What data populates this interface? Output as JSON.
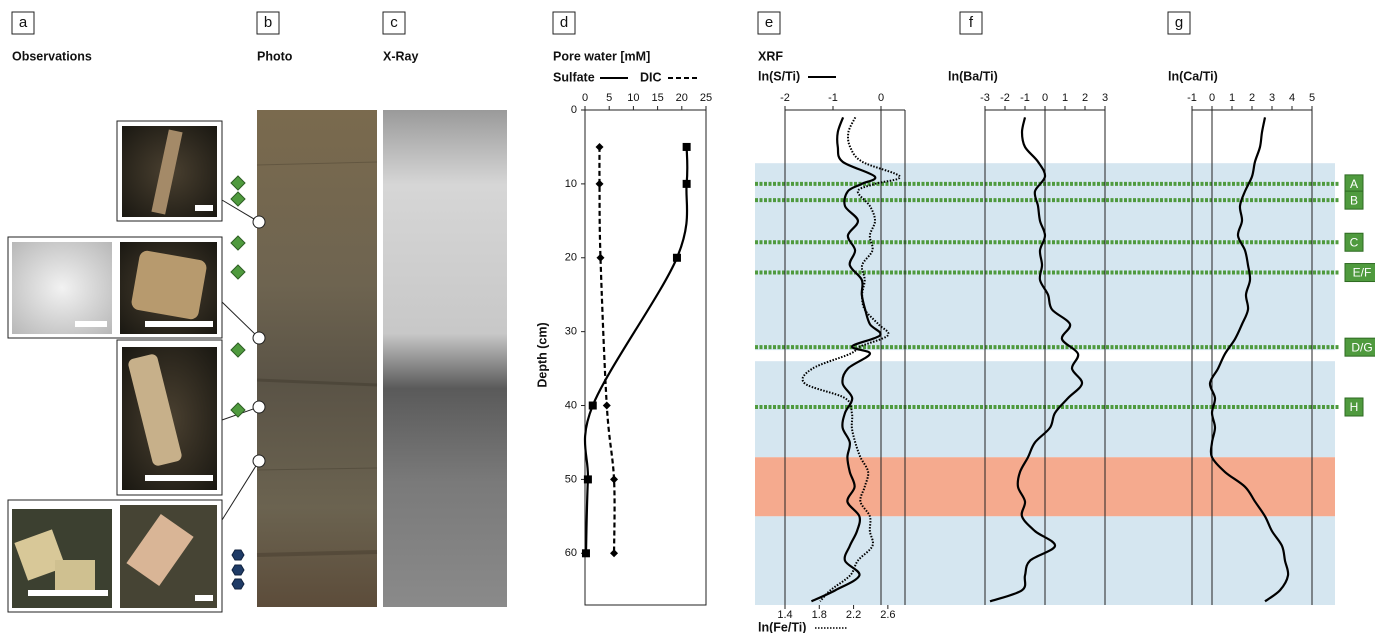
{
  "panels": {
    "labels": [
      "a",
      "b",
      "c",
      "d",
      "e",
      "f",
      "g"
    ],
    "observations": "Observations",
    "photo": "Photo",
    "xray": "X-Ray"
  },
  "chart_data": [
    {
      "type": "line",
      "title": "Pore water [mM]",
      "ylabel": "Depth (cm)",
      "xlim": [
        0,
        25
      ],
      "xticks": [
        0,
        5,
        10,
        15,
        20,
        25
      ],
      "ylim": [
        0,
        67
      ],
      "yticks": [
        0,
        10,
        20,
        30,
        40,
        50,
        60
      ],
      "depth": [
        5,
        10,
        20,
        40,
        50,
        60
      ],
      "series": [
        {
          "name": "Sulfate",
          "color": "#000000",
          "dash": "solid",
          "marker": "square",
          "values": [
            21,
            21,
            19,
            1.6,
            0.6,
            0.2
          ]
        },
        {
          "name": "DIC",
          "color": "#000000",
          "dash": "dashed",
          "marker": "diamond",
          "values": [
            3,
            3,
            3.2,
            4.5,
            6,
            6
          ]
        }
      ]
    },
    {
      "type": "line",
      "title": "XRF",
      "xlim": [
        -2,
        0.5
      ],
      "xticks": [
        -2,
        -1,
        0
      ],
      "x2lim": [
        1.4,
        2.8
      ],
      "x2ticks": [
        1.4,
        1.8,
        2.2,
        2.6
      ],
      "ylim": [
        0,
        67
      ],
      "refline": 0,
      "depth": [
        1,
        3,
        5,
        7,
        9,
        10,
        11,
        13,
        15,
        17,
        19,
        21,
        23,
        25,
        27,
        29,
        30.5,
        32,
        33,
        35,
        37,
        39,
        41,
        43,
        45,
        47,
        49,
        51,
        53,
        55,
        57,
        59,
        61,
        63,
        65,
        66.5
      ],
      "series": [
        {
          "name": "ln(S/Ti)",
          "color": "#000000",
          "dash": "solid",
          "values": [
            -0.79,
            -0.9,
            -0.9,
            -0.8,
            -0.13,
            -0.4,
            -0.69,
            -0.75,
            -0.48,
            -0.69,
            -0.54,
            -0.65,
            -0.4,
            -0.4,
            -0.33,
            -0.23,
            -0.02,
            -0.6,
            -0.23,
            -0.69,
            -0.8,
            -0.6,
            -0.75,
            -0.8,
            -0.65,
            -0.7,
            -0.65,
            -0.55,
            -0.7,
            -0.45,
            -0.5,
            -0.65,
            -0.75,
            -0.45,
            -0.95,
            -1.45
          ]
        },
        {
          "name": "ln(Fe/Ti)",
          "color": "#000000",
          "dash": "dotted",
          "axis": "x2",
          "values": [
            2.22,
            2.14,
            2.16,
            2.3,
            2.74,
            2.45,
            2.25,
            2.39,
            2.45,
            2.39,
            2.42,
            2.3,
            2.33,
            2.3,
            2.33,
            2.49,
            2.6,
            2.28,
            2.16,
            1.72,
            1.63,
            2.1,
            2.18,
            2.18,
            2.22,
            2.28,
            2.37,
            2.33,
            2.28,
            2.39,
            2.39,
            2.42,
            2.25,
            2.16,
            1.93,
            1.81
          ]
        }
      ]
    },
    {
      "type": "line",
      "xlim": [
        -3,
        3
      ],
      "xticks": [
        -3,
        -2,
        -1,
        0,
        1,
        2,
        3
      ],
      "ylim": [
        0,
        67
      ],
      "refline": 0,
      "depth": [
        1,
        3,
        5,
        7,
        9,
        11,
        13,
        15,
        17,
        19,
        21,
        23,
        25,
        27,
        29,
        31,
        33,
        35,
        37,
        39,
        41,
        43,
        45,
        47,
        49,
        51,
        53,
        55,
        57,
        59,
        61,
        63,
        65,
        66.5
      ],
      "series": [
        {
          "name": "ln(Ba/Ti)",
          "color": "#000000",
          "dash": "solid",
          "values": [
            -1,
            -1.15,
            -1,
            -0.35,
            0,
            -0.5,
            -0.35,
            -0.25,
            0,
            -0.25,
            -0.15,
            -0.25,
            0.15,
            0.35,
            1.25,
            0.85,
            1.65,
            1.35,
            1.85,
            1.15,
            0.5,
            0.25,
            -0.5,
            -0.85,
            -1.25,
            -1.35,
            -1,
            -1.15,
            -0.5,
            0.5,
            -0.75,
            -1,
            -1.15,
            -2.75
          ]
        }
      ]
    },
    {
      "type": "line",
      "xlim": [
        -1,
        5
      ],
      "xticks": [
        -1,
        0,
        1,
        2,
        3,
        4,
        5
      ],
      "ylim": [
        0,
        67
      ],
      "refline": 0,
      "depth": [
        1,
        3,
        5,
        7,
        9,
        11,
        13,
        15,
        17,
        19,
        21,
        23,
        25,
        27,
        29,
        31,
        33,
        35,
        37,
        39,
        41,
        43,
        45,
        47,
        49,
        51,
        53,
        55,
        57,
        59,
        61,
        63,
        65,
        66.5
      ],
      "series": [
        {
          "name": "ln(Ca/Ti)",
          "color": "#000000",
          "dash": "solid",
          "values": [
            2.65,
            2.5,
            2.4,
            2.15,
            2,
            1.65,
            1.4,
            1.5,
            1.3,
            1.65,
            1.8,
            1.9,
            1.7,
            1.8,
            1.5,
            1.15,
            0.65,
            0.3,
            -0.1,
            0.15,
            0,
            0.15,
            0,
            0,
            0.65,
            1.65,
            2.15,
            2.65,
            3,
            3.5,
            3.65,
            3.8,
            3.4,
            2.65
          ]
        }
      ]
    }
  ],
  "zones": [
    {
      "from": 7.2,
      "to": 32.5,
      "color": "#d5e6f0"
    },
    {
      "from": 34,
      "to": 47,
      "color": "#d5e6f0"
    },
    {
      "from": 47,
      "to": 55,
      "color": "#f5aa8e"
    },
    {
      "from": 55,
      "to": 67,
      "color": "#d5e6f0"
    }
  ],
  "horizons": [
    {
      "label": "A",
      "depth": 10
    },
    {
      "label": "B",
      "depth": 12.2
    },
    {
      "label": "C",
      "depth": 17.9
    },
    {
      "label": "E/F",
      "depth": 22
    },
    {
      "label": "D/G",
      "depth": 32.1
    },
    {
      "label": "H",
      "depth": 40.2
    }
  ],
  "horizon_color": "#4f9a3e"
}
